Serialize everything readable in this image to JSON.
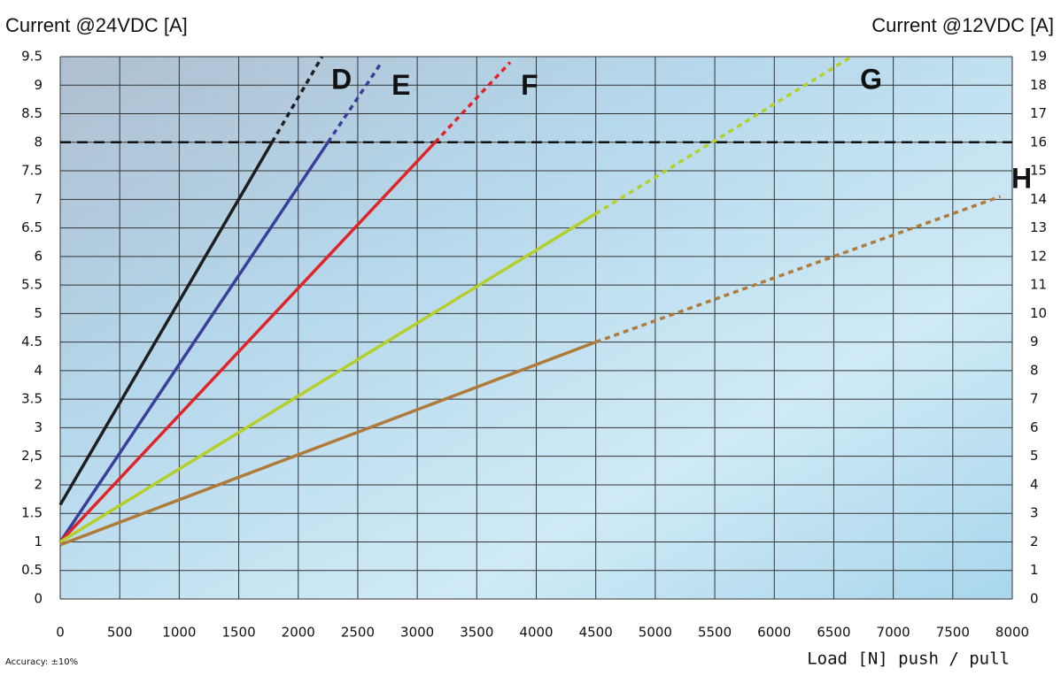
{
  "chart_data": {
    "type": "line",
    "ylabel": "Current @24VDC [A]",
    "y2label": "Current @12VDC [A]",
    "xlabel": "Load [N] push / pull",
    "note": "Accuracy: ±10%",
    "xlim": [
      0,
      8000
    ],
    "xticks": [
      0,
      500,
      1000,
      1500,
      2000,
      2500,
      3000,
      3500,
      4000,
      4500,
      5000,
      5500,
      6000,
      6500,
      7000,
      7500,
      8000
    ],
    "ylim": [
      0,
      9.5
    ],
    "yticks": [
      0,
      0.5,
      1,
      1.5,
      2,
      {
        "value": 2.5,
        "label": "2,5"
      },
      3,
      3.5,
      4,
      4.5,
      5,
      5.5,
      6,
      6.5,
      7,
      7.5,
      8,
      8.5,
      9,
      9.5
    ],
    "y2lim": [
      0,
      19
    ],
    "y2ticks": [
      0,
      1,
      2,
      3,
      4,
      5,
      6,
      7,
      8,
      9,
      10,
      11,
      12,
      13,
      14,
      15,
      16,
      17,
      18,
      19
    ],
    "grid": true,
    "hline": 8,
    "series": [
      {
        "name": "D",
        "color": "#1e1e1e",
        "x": [
          0,
          1780,
          2200
        ],
        "values": [
          1.65,
          8,
          9.5
        ],
        "styles": [
          "solid",
          "dashed"
        ]
      },
      {
        "name": "E",
        "color": "#3a3f9a",
        "x": [
          0,
          2250,
          2700
        ],
        "values": [
          1,
          8,
          9.4
        ],
        "styles": [
          "solid",
          "dashed"
        ]
      },
      {
        "name": "F",
        "color": "#e02428",
        "x": [
          0,
          3150,
          3780
        ],
        "values": [
          1,
          8,
          9.4
        ],
        "styles": [
          "solid",
          "dashed"
        ]
      },
      {
        "name": "G",
        "color": "#b5cf2a",
        "x": [
          0,
          4500,
          6650
        ],
        "values": [
          1,
          6.75,
          9.5
        ],
        "styles": [
          "solid",
          "dashed"
        ]
      },
      {
        "name": "H",
        "color": "#b07a3a",
        "x": [
          0,
          4500,
          7900
        ],
        "values": [
          0.95,
          4.5,
          7.05
        ],
        "styles": [
          "solid",
          "dashed"
        ]
      }
    ]
  }
}
